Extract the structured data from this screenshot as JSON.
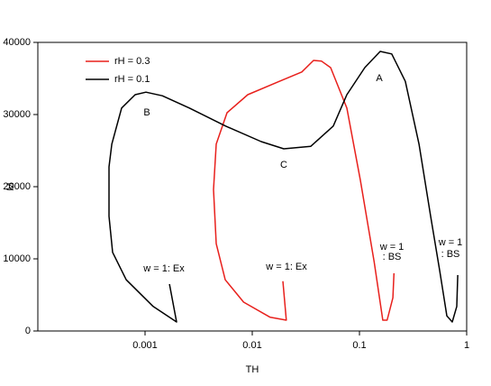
{
  "chart_data": {
    "type": "line",
    "x_label": "TH",
    "y_label": "M",
    "xscale": "log",
    "xlim": [
      0.0001,
      1
    ],
    "xticks": [
      0.001,
      0.01,
      0.1,
      1
    ],
    "ylim": [
      0,
      40000
    ],
    "yticks": [
      0,
      10000,
      20000,
      30000,
      40000
    ],
    "grid": false,
    "legend": "upper left",
    "annotations": [
      "A",
      "B",
      "C",
      "w = 1: Ex",
      "w = 1: Ex",
      "w = 1",
      ": BS",
      "w = 1",
      ": BS"
    ],
    "series": [
      {
        "name": "rH = 0.3",
        "color": "#e8201c",
        "x": [
          0.0193,
          0.0208,
          0.0147,
          0.0083,
          0.0056,
          0.00461,
          0.00435,
          0.00461,
          0.00582,
          0.00908,
          0.0179,
          0.029,
          0.0373,
          0.0443,
          0.0538,
          0.0762,
          0.102,
          0.137,
          0.165,
          0.181,
          0.205,
          0.21
        ],
        "values": [
          6900,
          1500,
          1900,
          4000,
          7100,
          12100,
          19600,
          25900,
          30250,
          32750,
          34600,
          35900,
          37500,
          37400,
          36500,
          30900,
          20900,
          9600,
          1500,
          1500,
          4600,
          8000
        ]
      },
      {
        "name": "rH = 0.1",
        "color": "#000000",
        "x": [
          0.00169,
          0.00197,
          0.00119,
          0.000667,
          0.000498,
          0.000461,
          0.000461,
          0.00049,
          0.000605,
          0.000809,
          0.00102,
          0.00145,
          0.00259,
          0.00565,
          0.0121,
          0.0197,
          0.0352,
          0.057,
          0.0762,
          0.112,
          0.156,
          0.2,
          0.268,
          0.359,
          0.461,
          0.56,
          0.653,
          0.734,
          0.809,
          0.825
        ],
        "values": [
          6500,
          1250,
          3400,
          7100,
          10900,
          15900,
          22750,
          25900,
          30900,
          32750,
          33100,
          32600,
          30900,
          28400,
          26250,
          25250,
          25600,
          28400,
          32750,
          36500,
          38750,
          38400,
          34600,
          25900,
          15900,
          8400,
          2100,
          1250,
          3400,
          7750
        ]
      }
    ]
  }
}
